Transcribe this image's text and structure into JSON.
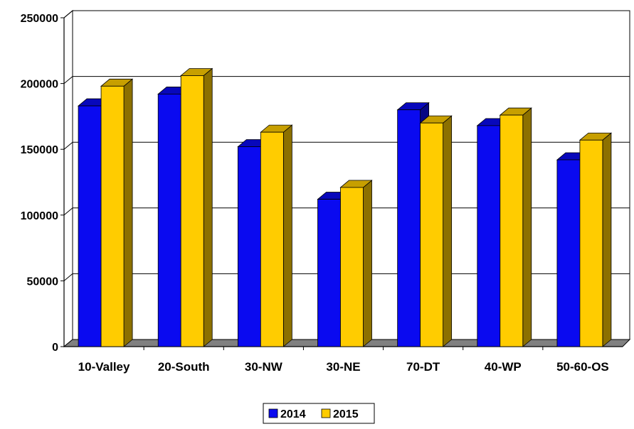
{
  "chart_data": {
    "type": "bar",
    "style": "3d-clustered-column",
    "title": "",
    "xlabel": "",
    "ylabel": "",
    "categories": [
      "10-Valley",
      "20-South",
      "30-NW",
      "30-NE",
      "70-DT",
      "40-WP",
      "50-60-OS"
    ],
    "series": [
      {
        "name": "2014",
        "values": [
          183000,
          192000,
          152000,
          112000,
          180000,
          168000,
          142000
        ]
      },
      {
        "name": "2015",
        "values": [
          198000,
          206000,
          163000,
          121000,
          170000,
          176000,
          157000
        ]
      }
    ],
    "ylim": [
      0,
      250000
    ],
    "yticks": [
      0,
      50000,
      100000,
      150000,
      200000,
      250000
    ],
    "ytick_labels": [
      "0",
      "50000",
      "100000",
      "150000",
      "200000",
      "250000"
    ],
    "grid": true,
    "legend_position": "bottom",
    "colors": {
      "2014": "#0A0AF0",
      "2015": "#FFCC00",
      "gridline": "#000000",
      "floor": "#808080"
    }
  }
}
